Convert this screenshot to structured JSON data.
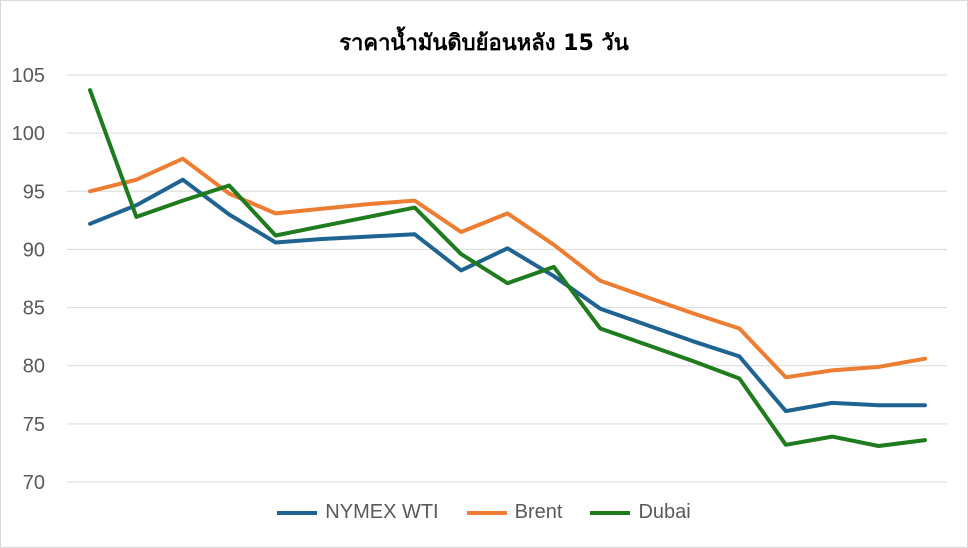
{
  "chart_data": {
    "type": "line",
    "title": "ราคาน้ำมันดิบย้อนหลัง 15 วัน",
    "xlabel": "",
    "ylabel": "",
    "ylim": [
      70,
      105
    ],
    "yticks": [
      70,
      75,
      80,
      85,
      90,
      95,
      100,
      105
    ],
    "grid": true,
    "legend_position": "bottom",
    "x": [
      1,
      2,
      3,
      4,
      5,
      6,
      7,
      8,
      9,
      10,
      11,
      12,
      13,
      14,
      15,
      16,
      17,
      18,
      19
    ],
    "series": [
      {
        "name": "NYMEX WTI",
        "color": "#1f6391",
        "values": [
          92.2,
          93.8,
          96.0,
          93.0,
          90.6,
          90.9,
          91.1,
          91.3,
          88.2,
          90.1,
          87.7,
          84.9,
          83.5,
          82.1,
          80.8,
          76.1,
          76.8,
          76.6,
          76.6
        ]
      },
      {
        "name": "Brent",
        "color": "#ed7d31",
        "values": [
          95.0,
          96.0,
          97.8,
          94.8,
          93.1,
          93.5,
          93.9,
          94.2,
          91.5,
          93.1,
          90.4,
          87.3,
          85.9,
          84.5,
          83.2,
          79.0,
          79.6,
          79.9,
          80.6
        ]
      },
      {
        "name": "Dubai",
        "color": "#1e7b1e",
        "values": [
          103.7,
          92.8,
          94.2,
          95.5,
          91.2,
          92.0,
          92.8,
          93.6,
          89.6,
          87.1,
          88.5,
          83.2,
          81.8,
          80.4,
          78.9,
          73.2,
          73.9,
          73.1,
          73.6
        ]
      }
    ]
  }
}
